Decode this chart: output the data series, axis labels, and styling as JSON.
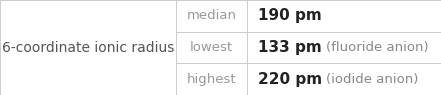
{
  "title": "6-coordinate ionic radius",
  "rows": [
    {
      "label": "median",
      "value": "190 pm",
      "note": ""
    },
    {
      "label": "lowest",
      "value": "133 pm",
      "note": "(fluoride anion)"
    },
    {
      "label": "highest",
      "value": "220 pm",
      "note": "(iodide anion)"
    }
  ],
  "border_color": "#cccccc",
  "text_color_title": "#555555",
  "text_color_label": "#999999",
  "text_color_value": "#222222",
  "text_color_note": "#888888",
  "bg_color": "#ffffff",
  "div1": 0.4,
  "div2": 0.56,
  "title_fontsize": 10.0,
  "label_fontsize": 9.5,
  "value_fontsize": 11.0,
  "note_fontsize": 9.5
}
